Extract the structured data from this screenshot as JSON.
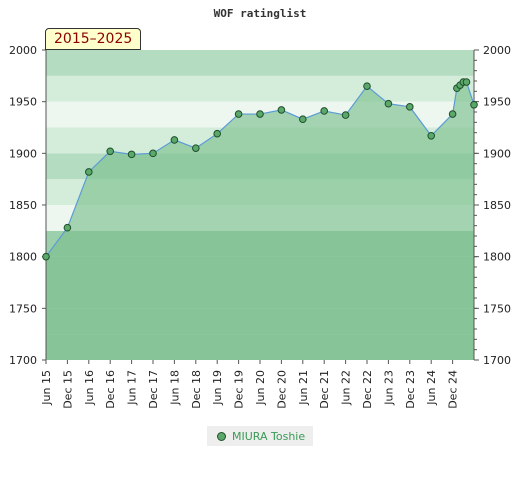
{
  "chart_data": {
    "type": "area",
    "title": "WOF ratinglist",
    "period_label": "2015–2025",
    "ylim": [
      1700,
      2000
    ],
    "y_ticks": [
      1700,
      1750,
      1800,
      1850,
      1900,
      1950,
      2000
    ],
    "x_ticks": [
      "Jun 15",
      "Dec 15",
      "Jun 16",
      "Dec 16",
      "Jun 17",
      "Dec 17",
      "Jun 18",
      "Dec 18",
      "Jun 19",
      "Dec 19",
      "Jun 20",
      "Dec 20",
      "Jun 21",
      "Dec 21",
      "Jun 22",
      "Dec 22",
      "Jun 23",
      "Dec 23",
      "Jun 24",
      "Dec 24"
    ],
    "legend_position": "bottom",
    "colors": {
      "line": "#5b9bd5",
      "fill": "#7cc08f",
      "marker": "#5aa86a",
      "band_light": "#eef7ef",
      "band_mid": "#b3dcc0",
      "band_dark": "#7ac18f"
    },
    "series": [
      {
        "name": "MIURA Toshie",
        "points": [
          {
            "x": 0.0,
            "y": 1800
          },
          {
            "x": 1.0,
            "y": 1828
          },
          {
            "x": 2.0,
            "y": 1882
          },
          {
            "x": 3.0,
            "y": 1902
          },
          {
            "x": 4.0,
            "y": 1899
          },
          {
            "x": 5.0,
            "y": 1900
          },
          {
            "x": 6.0,
            "y": 1913
          },
          {
            "x": 7.0,
            "y": 1905
          },
          {
            "x": 8.0,
            "y": 1919
          },
          {
            "x": 9.0,
            "y": 1938
          },
          {
            "x": 10.0,
            "y": 1938
          },
          {
            "x": 11.0,
            "y": 1942
          },
          {
            "x": 12.0,
            "y": 1933
          },
          {
            "x": 13.0,
            "y": 1941
          },
          {
            "x": 14.0,
            "y": 1937
          },
          {
            "x": 15.0,
            "y": 1965
          },
          {
            "x": 16.0,
            "y": 1948
          },
          {
            "x": 17.0,
            "y": 1945
          },
          {
            "x": 18.0,
            "y": 1917
          },
          {
            "x": 19.0,
            "y": 1938
          },
          {
            "x": 19.2,
            "y": 1963
          },
          {
            "x": 19.35,
            "y": 1966
          },
          {
            "x": 19.5,
            "y": 1969
          },
          {
            "x": 19.65,
            "y": 1969
          },
          {
            "x": 20.0,
            "y": 1947
          }
        ]
      }
    ]
  }
}
